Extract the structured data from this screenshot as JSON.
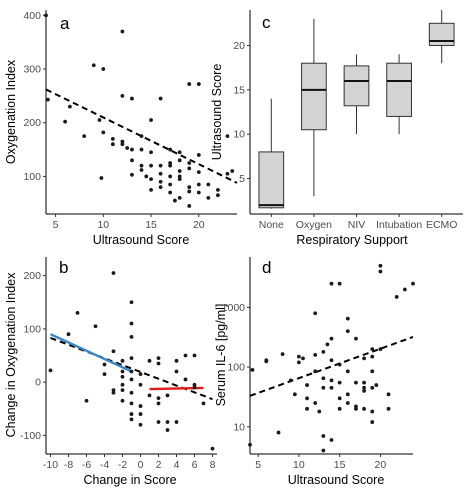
{
  "chart_data": [
    {
      "panel": "a",
      "type": "scatter",
      "xlabel": "Ultrasound Score",
      "ylabel": "Oxygenation Index",
      "xlim": [
        4,
        24
      ],
      "ylim": [
        30,
        410
      ],
      "xticks": [
        5,
        10,
        15,
        20
      ],
      "yticks": [
        100,
        200,
        300,
        400
      ],
      "points": [
        [
          4,
          400
        ],
        [
          4.2,
          243
        ],
        [
          6,
          202
        ],
        [
          6.5,
          230
        ],
        [
          8,
          175
        ],
        [
          9,
          307
        ],
        [
          10,
          300
        ],
        [
          9.6,
          205
        ],
        [
          10,
          182
        ],
        [
          9.8,
          97
        ],
        [
          11,
          170
        ],
        [
          11,
          160
        ],
        [
          12,
          370
        ],
        [
          12,
          250
        ],
        [
          12,
          165
        ],
        [
          12,
          160
        ],
        [
          12.5,
          153
        ],
        [
          13,
          245
        ],
        [
          13,
          150
        ],
        [
          13,
          130
        ],
        [
          13,
          103
        ],
        [
          14,
          175
        ],
        [
          14,
          150
        ],
        [
          14,
          120
        ],
        [
          14,
          112
        ],
        [
          14.5,
          100
        ],
        [
          15,
          205
        ],
        [
          15,
          145
        ],
        [
          15,
          120
        ],
        [
          15,
          95
        ],
        [
          15,
          75
        ],
        [
          16,
          245
        ],
        [
          16,
          120
        ],
        [
          16,
          105
        ],
        [
          16,
          90
        ],
        [
          16,
          80
        ],
        [
          17,
          150
        ],
        [
          17,
          125
        ],
        [
          17,
          120
        ],
        [
          17,
          100
        ],
        [
          17,
          85
        ],
        [
          17,
          70
        ],
        [
          17.5,
          55
        ],
        [
          18,
          145
        ],
        [
          18,
          130
        ],
        [
          18,
          110
        ],
        [
          18,
          100
        ],
        [
          18,
          95
        ],
        [
          18,
          60
        ],
        [
          19,
          272
        ],
        [
          19,
          125
        ],
        [
          19,
          115
        ],
        [
          19,
          80
        ],
        [
          19,
          72
        ],
        [
          19,
          45
        ],
        [
          20,
          272
        ],
        [
          20,
          140
        ],
        [
          20,
          108
        ],
        [
          20,
          85
        ],
        [
          20,
          70
        ],
        [
          21,
          85
        ],
        [
          21,
          60
        ],
        [
          22,
          75
        ],
        [
          22,
          65
        ],
        [
          23,
          175
        ],
        [
          23,
          105
        ],
        [
          23.5,
          110
        ]
      ],
      "trend": {
        "style": "dashed",
        "color": "#000000",
        "x": [
          4,
          24
        ],
        "y": [
          262,
          88
        ]
      }
    },
    {
      "panel": "b",
      "type": "scatter",
      "xlabel": "Change in Score",
      "ylabel": "Change in Oxygenation Index",
      "xlim": [
        -10.5,
        8.5
      ],
      "ylim": [
        -135,
        235
      ],
      "xticks": [
        -10,
        -8,
        -6,
        -4,
        -2,
        0,
        2,
        4,
        6,
        8
      ],
      "yticks": [
        -100,
        0,
        100,
        200
      ],
      "points": [
        [
          -10,
          22
        ],
        [
          -8,
          90
        ],
        [
          -7,
          130
        ],
        [
          -6,
          -35
        ],
        [
          -5,
          105
        ],
        [
          -4,
          33
        ],
        [
          -4,
          15
        ],
        [
          -3,
          205
        ],
        [
          -3,
          58
        ],
        [
          -3,
          -15
        ],
        [
          -3,
          -20
        ],
        [
          -2,
          40
        ],
        [
          -2,
          20
        ],
        [
          -2,
          10
        ],
        [
          -2,
          -5
        ],
        [
          -2,
          -15
        ],
        [
          -2,
          -35
        ],
        [
          -1,
          150
        ],
        [
          -1,
          110
        ],
        [
          -1,
          85
        ],
        [
          -1,
          45
        ],
        [
          -1,
          20
        ],
        [
          -1,
          5
        ],
        [
          -1,
          -20
        ],
        [
          -1,
          -40
        ],
        [
          -1,
          -60
        ],
        [
          -1,
          -70
        ],
        [
          0,
          15
        ],
        [
          0,
          -5
        ],
        [
          0,
          -45
        ],
        [
          0,
          -60
        ],
        [
          0,
          -80
        ],
        [
          1,
          40
        ],
        [
          1,
          -25
        ],
        [
          2,
          45
        ],
        [
          2,
          35
        ],
        [
          2,
          -30
        ],
        [
          2,
          -40
        ],
        [
          2,
          -75
        ],
        [
          3,
          -25
        ],
        [
          3,
          -75
        ],
        [
          3,
          -90
        ],
        [
          4,
          40
        ],
        [
          4,
          20
        ],
        [
          4,
          -75
        ],
        [
          5,
          50
        ],
        [
          5,
          5
        ],
        [
          6,
          50
        ],
        [
          6,
          -5
        ],
        [
          6,
          -10
        ],
        [
          7,
          -40
        ],
        [
          8,
          -125
        ]
      ],
      "lines": [
        {
          "style": "dashed",
          "color": "#000000",
          "x": [
            -10,
            8
          ],
          "y": [
            83,
            -32
          ]
        },
        {
          "style": "solid",
          "color": "#3a86c8",
          "x": [
            -10,
            -1
          ],
          "y": [
            90,
            20
          ]
        },
        {
          "style": "solid",
          "color": "#e31a1c",
          "x": [
            1,
            7
          ],
          "y": [
            -13,
            -11
          ]
        }
      ]
    },
    {
      "panel": "c",
      "type": "box",
      "xlabel": "Respiratory Support",
      "ylabel": "Ultrasound Score",
      "ylim": [
        1,
        24
      ],
      "yticks": [
        5,
        10,
        15,
        20
      ],
      "categories": [
        "None",
        "Oxygen",
        "NIV",
        "Intubation",
        "ECMO"
      ],
      "boxes": [
        {
          "min": 1.6,
          "q1": 1.7,
          "median": 2,
          "q3": 8,
          "max": 14
        },
        {
          "min": 3,
          "q1": 10.5,
          "median": 15,
          "q3": 18,
          "max": 23
        },
        {
          "min": 10,
          "q1": 13.2,
          "median": 16,
          "q3": 17.7,
          "max": 19
        },
        {
          "min": 10,
          "q1": 12,
          "median": 16,
          "q3": 18,
          "max": 19
        },
        {
          "min": 18,
          "q1": 20,
          "median": 20.5,
          "q3": 22.5,
          "max": 24
        }
      ]
    },
    {
      "panel": "d",
      "type": "scatter",
      "xlabel": "Ultrasound Score",
      "ylabel": "Serum IL-6 [pg/ml]",
      "xlim": [
        4,
        24
      ],
      "ylim": [
        3.5,
        7000
      ],
      "yscale": "log10",
      "xticks": [
        5,
        10,
        15,
        20
      ],
      "yticks": [
        10,
        100,
        1000
      ],
      "points": [
        [
          4,
          5
        ],
        [
          4.3,
          90
        ],
        [
          6,
          130
        ],
        [
          6,
          125
        ],
        [
          7.5,
          8
        ],
        [
          8,
          165
        ],
        [
          9,
          60
        ],
        [
          9.5,
          35
        ],
        [
          10,
          150
        ],
        [
          10,
          120
        ],
        [
          10.5,
          140
        ],
        [
          11,
          50
        ],
        [
          11,
          30
        ],
        [
          11,
          20
        ],
        [
          12,
          800
        ],
        [
          12,
          160
        ],
        [
          12,
          85
        ],
        [
          12,
          25
        ],
        [
          12.5,
          18
        ],
        [
          13,
          180
        ],
        [
          13,
          65
        ],
        [
          13,
          45
        ],
        [
          13,
          7
        ],
        [
          13,
          4
        ],
        [
          13.5,
          240
        ],
        [
          14,
          2500
        ],
        [
          14,
          300
        ],
        [
          14,
          130
        ],
        [
          14,
          60
        ],
        [
          14,
          45
        ],
        [
          14,
          6
        ],
        [
          15,
          2500
        ],
        [
          15,
          110
        ],
        [
          15,
          55
        ],
        [
          15,
          30
        ],
        [
          15,
          20
        ],
        [
          16,
          650
        ],
        [
          16,
          400
        ],
        [
          16,
          85
        ],
        [
          16,
          35
        ],
        [
          16,
          25
        ],
        [
          17,
          300
        ],
        [
          17,
          55
        ],
        [
          17,
          22
        ],
        [
          17,
          20
        ],
        [
          18,
          140
        ],
        [
          18,
          55
        ],
        [
          18,
          45
        ],
        [
          18,
          40
        ],
        [
          18,
          20
        ],
        [
          19,
          200
        ],
        [
          19,
          150
        ],
        [
          19,
          85
        ],
        [
          19,
          45
        ],
        [
          19,
          18
        ],
        [
          19,
          12
        ],
        [
          19.5,
          50
        ],
        [
          20,
          5000
        ],
        [
          20,
          4000
        ],
        [
          20,
          200
        ],
        [
          21,
          35
        ],
        [
          21,
          20
        ],
        [
          22,
          1500
        ],
        [
          23,
          2000
        ],
        [
          24,
          2500
        ]
      ],
      "trend": {
        "style": "dashed",
        "color": "#000000",
        "x": [
          4,
          24
        ],
        "y": [
          33,
          320
        ]
      }
    }
  ]
}
